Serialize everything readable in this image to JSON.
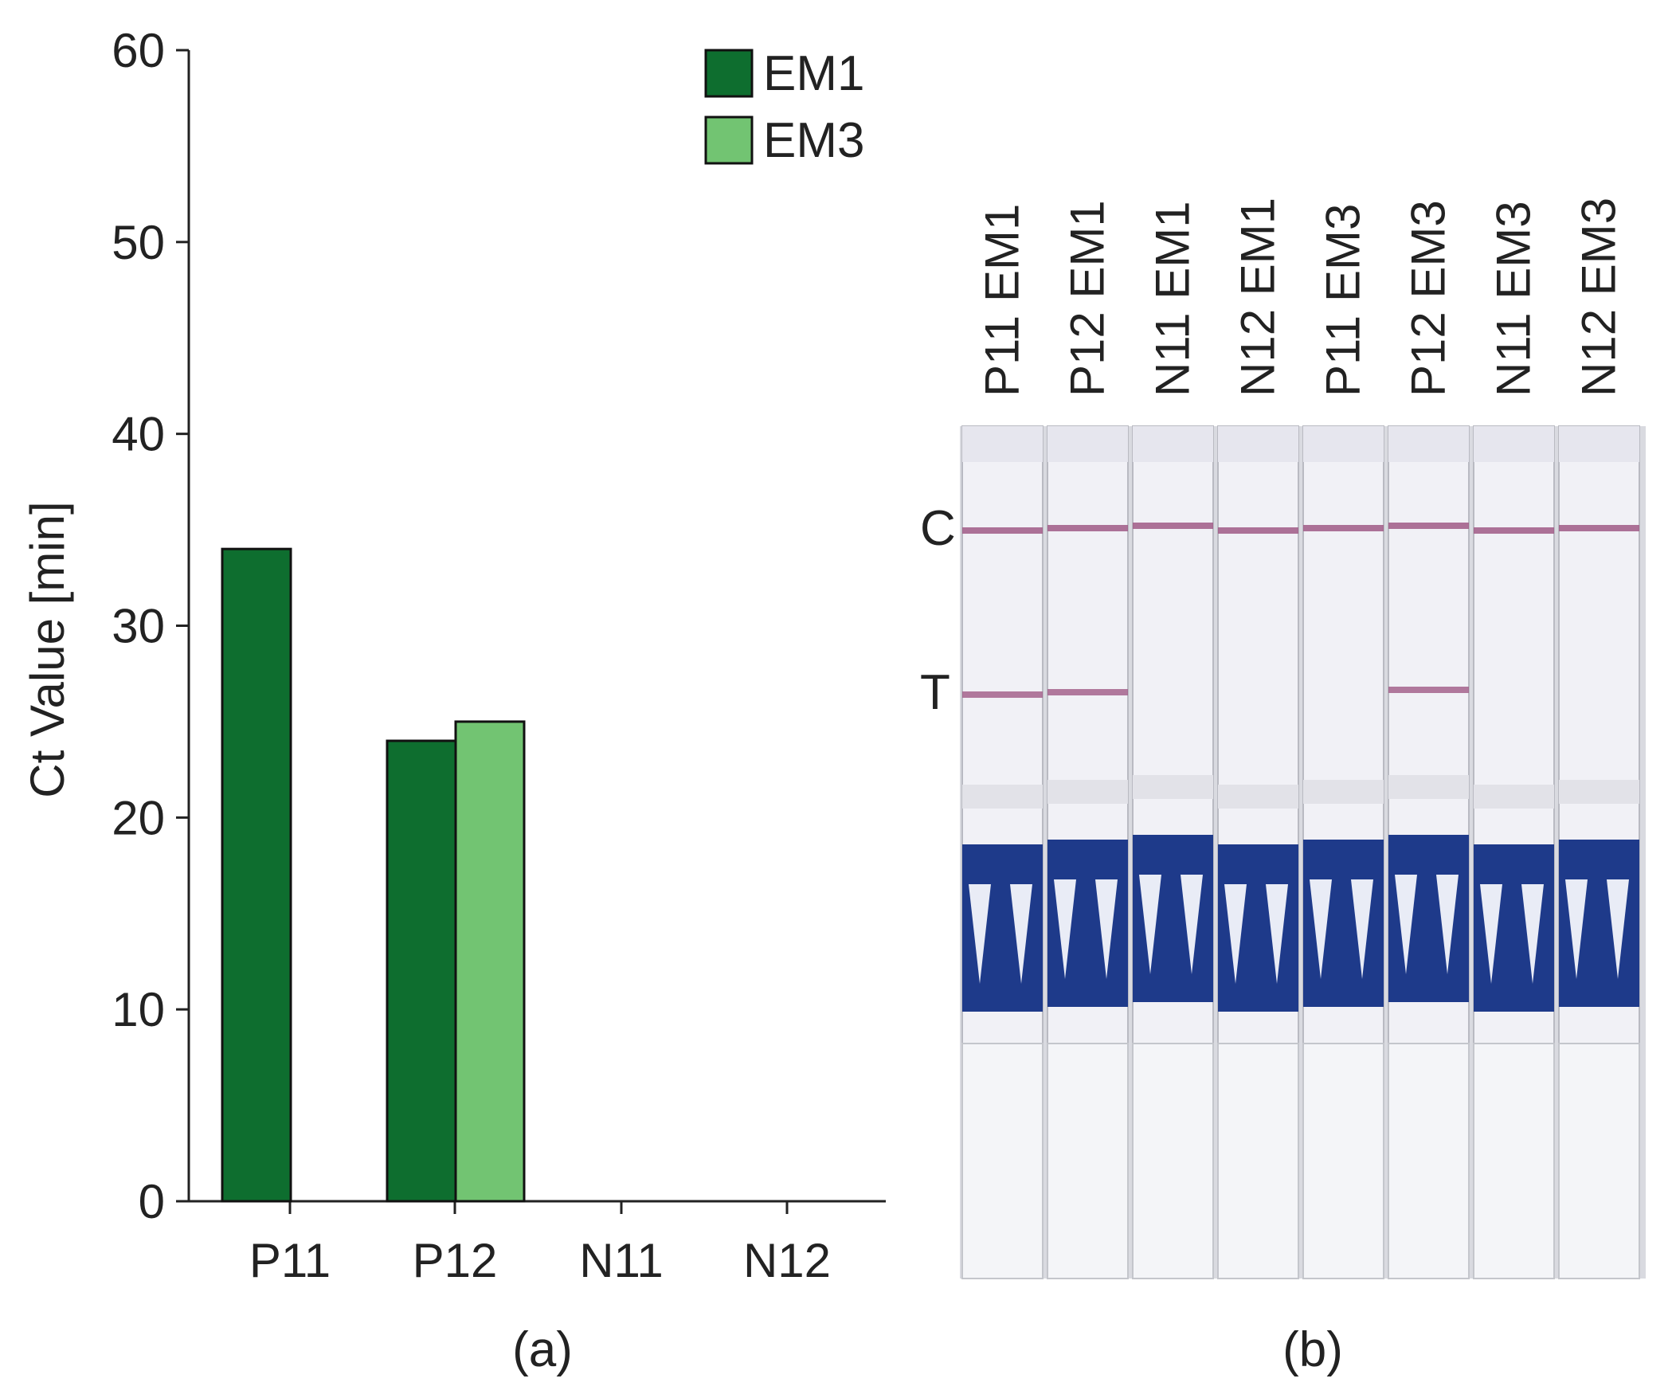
{
  "chart_data": {
    "type": "bar",
    "ylabel": "Ct Value [min]",
    "xlabel": "",
    "ylim": [
      0,
      60
    ],
    "yticks": [
      0,
      10,
      20,
      30,
      40,
      50,
      60
    ],
    "categories": [
      "P11",
      "P12",
      "N11",
      "N12"
    ],
    "series": [
      {
        "name": "EM1",
        "color": "#0e6e2f",
        "values": [
          34,
          24,
          0,
          0
        ]
      },
      {
        "name": "EM3",
        "color": "#72c472",
        "values": [
          0,
          25,
          0,
          0
        ]
      }
    ],
    "legend": "top-right",
    "grid": false
  },
  "photo": {
    "lane_labels": [
      "P11 EM1",
      "P12 EM1",
      "N11 EM1",
      "N12 EM1",
      "P11 EM3",
      "P12 EM3",
      "N11 EM3",
      "N12 EM3"
    ],
    "line_labels": {
      "control": "C",
      "test": "T"
    },
    "test_line_visible": [
      true,
      true,
      false,
      false,
      false,
      true,
      false,
      false
    ],
    "colors": {
      "line": "#a05a86",
      "band": "#1e3a8a",
      "strip": "#f1f1f6",
      "pad": "#f4f5f8"
    }
  },
  "captions": {
    "a": "(a)",
    "b": "(b)"
  }
}
